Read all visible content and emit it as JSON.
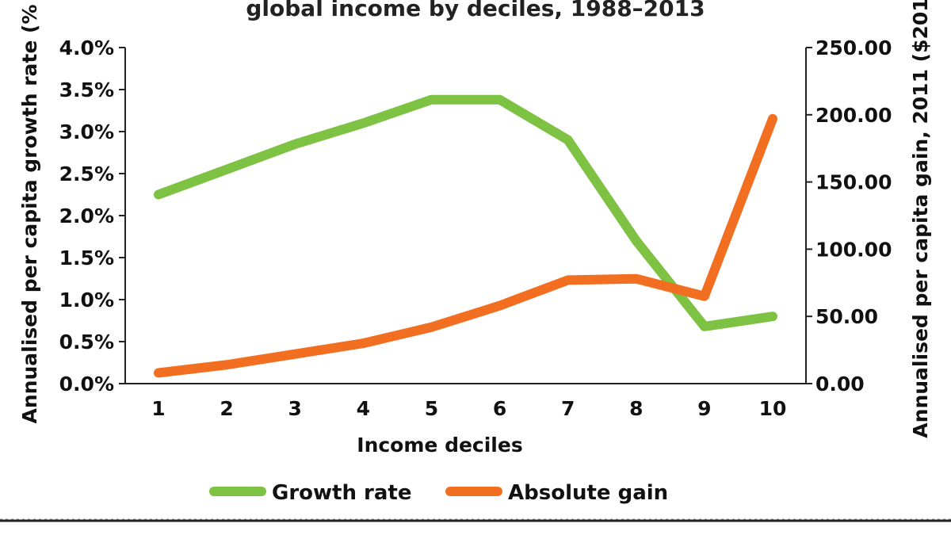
{
  "chart_data": {
    "type": "line",
    "title": "global income by deciles, 1988–2013",
    "xlabel": "Income deciles",
    "ylabel_left": "Annualised per capita growth rate (%",
    "ylabel_right": "Annualised per capita gain, 2011 ($201",
    "x": [
      1,
      2,
      3,
      4,
      5,
      6,
      7,
      8,
      9,
      10
    ],
    "x_tick_labels": [
      "1",
      "2",
      "3",
      "4",
      "5",
      "6",
      "7",
      "8",
      "9",
      "10"
    ],
    "y_left_ticks": [
      "0.0%",
      "0.5%",
      "1.0%",
      "1.5%",
      "2.0%",
      "2.5%",
      "3.0%",
      "3.5%",
      "4.0%"
    ],
    "y_left_range": [
      0,
      4.0
    ],
    "y_right_ticks": [
      "0.00",
      "50.00",
      "100.00",
      "150.00",
      "200.00",
      "250.00"
    ],
    "y_right_range": [
      0,
      250
    ],
    "series": [
      {
        "name": "Growth rate",
        "axis": "left",
        "color": "#7dc242",
        "values": [
          2.25,
          2.55,
          2.85,
          3.1,
          3.38,
          3.38,
          2.9,
          1.7,
          0.68,
          0.8
        ]
      },
      {
        "name": "Absolute gain",
        "axis": "right",
        "color": "#f26f21",
        "values": [
          8,
          14,
          22,
          30,
          42,
          58,
          77,
          78,
          65,
          197
        ]
      }
    ],
    "legend_position": "bottom",
    "grid": false
  },
  "footnote": ""
}
